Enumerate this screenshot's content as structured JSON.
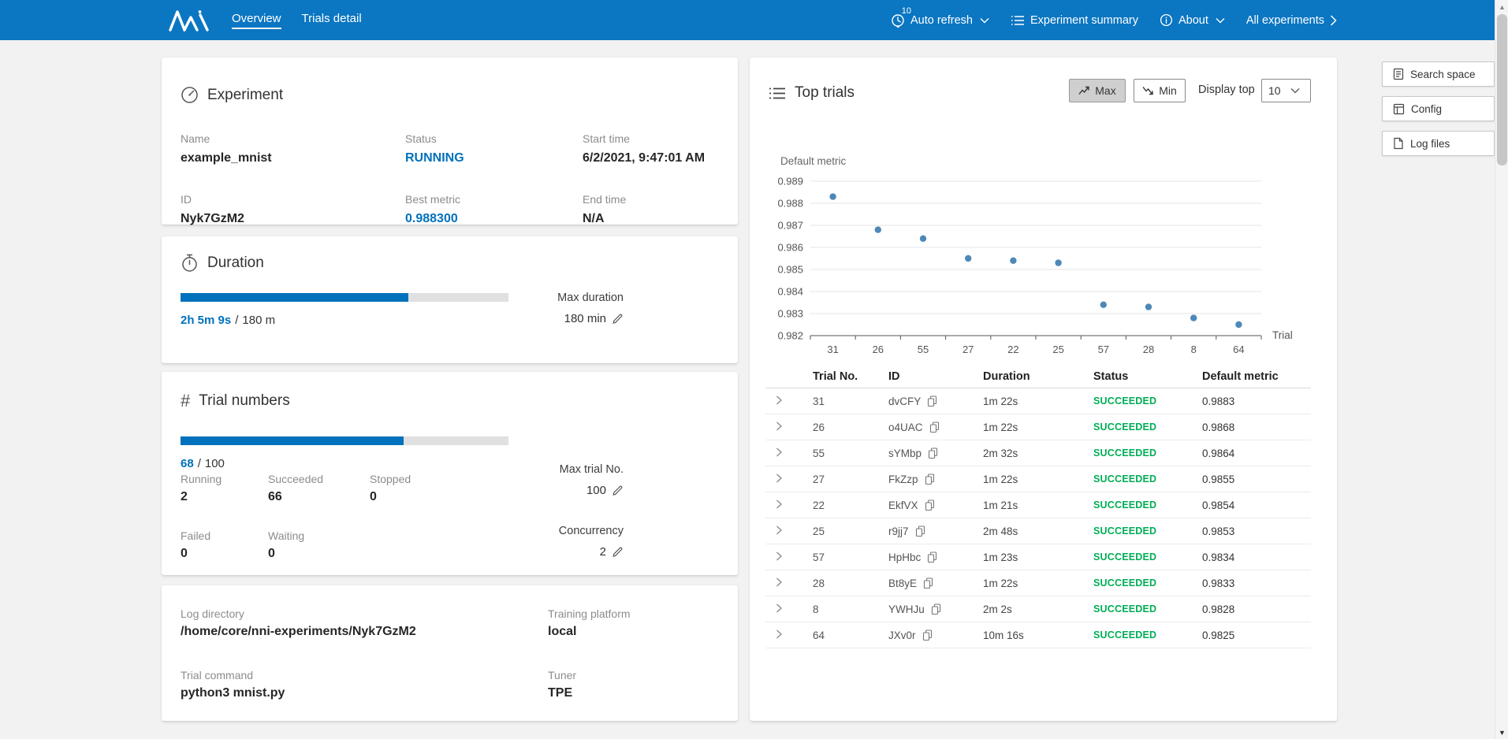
{
  "nav": {
    "tabs": [
      {
        "label": "Overview"
      },
      {
        "label": "Trials detail"
      }
    ],
    "auto_refresh_label": "Auto refresh",
    "auto_refresh_interval": "10",
    "experiment_summary_label": "Experiment summary",
    "about_label": "About",
    "all_experiments_label": "All experiments"
  },
  "side_buttons": [
    {
      "label": "Search space"
    },
    {
      "label": "Config"
    },
    {
      "label": "Log files"
    }
  ],
  "experiment_card": {
    "title": "Experiment",
    "fields": [
      {
        "label": "Name",
        "value": "example_mnist"
      },
      {
        "label": "Status",
        "value": "RUNNING"
      },
      {
        "label": "Start time",
        "value": "6/2/2021, 9:47:01 AM"
      },
      {
        "label": "ID",
        "value": "Nyk7GzM2"
      },
      {
        "label": "Best metric",
        "value": "0.988300"
      },
      {
        "label": "End time",
        "value": "N/A"
      }
    ]
  },
  "duration_card": {
    "title": "Duration",
    "progress_pct": 69.5,
    "elapsed": "2h 5m 9s",
    "divider": "/",
    "total": "180 m",
    "max_label": "Max duration",
    "max_value": "180 min"
  },
  "trials_card": {
    "title": "Trial numbers",
    "progress_pct": 68,
    "count": "68",
    "divider": "/",
    "total": "100",
    "stats": [
      {
        "label": "Running",
        "value": "2"
      },
      {
        "label": "Succeeded",
        "value": "66"
      },
      {
        "label": "Stopped",
        "value": "0"
      },
      {
        "label": "Failed",
        "value": "0"
      },
      {
        "label": "Waiting",
        "value": "0"
      }
    ],
    "max_trial_label": "Max trial No.",
    "max_trial_value": "100",
    "concurrency_label": "Concurrency",
    "concurrency_value": "2"
  },
  "info_card": {
    "fields": [
      {
        "label": "Log directory",
        "value": "/home/core/nni-experiments/Nyk7GzM2"
      },
      {
        "label": "Training platform",
        "value": "local"
      },
      {
        "label": "Trial command",
        "value": "python3 mnist.py"
      },
      {
        "label": "Tuner",
        "value": "TPE"
      }
    ]
  },
  "top_trials": {
    "title": "Top trials",
    "max_button": "Max",
    "min_button": "Min",
    "display_top_label": "Display top",
    "display_top_value": "10",
    "table": {
      "headers": [
        "Trial No.",
        "ID",
        "Duration",
        "Status",
        "Default metric"
      ],
      "rows": [
        {
          "no": "31",
          "id": "dvCFY",
          "duration": "1m 22s",
          "status": "SUCCEEDED",
          "metric": "0.9883"
        },
        {
          "no": "26",
          "id": "o4UAC",
          "duration": "1m 22s",
          "status": "SUCCEEDED",
          "metric": "0.9868"
        },
        {
          "no": "55",
          "id": "sYMbp",
          "duration": "2m 32s",
          "status": "SUCCEEDED",
          "metric": "0.9864"
        },
        {
          "no": "27",
          "id": "FkZzp",
          "duration": "1m 22s",
          "status": "SUCCEEDED",
          "metric": "0.9855"
        },
        {
          "no": "22",
          "id": "EkfVX",
          "duration": "1m 21s",
          "status": "SUCCEEDED",
          "metric": "0.9854"
        },
        {
          "no": "25",
          "id": "r9jj7",
          "duration": "2m 48s",
          "status": "SUCCEEDED",
          "metric": "0.9853"
        },
        {
          "no": "57",
          "id": "HpHbc",
          "duration": "1m 23s",
          "status": "SUCCEEDED",
          "metric": "0.9834"
        },
        {
          "no": "28",
          "id": "Bt8yE",
          "duration": "1m 22s",
          "status": "SUCCEEDED",
          "metric": "0.9833"
        },
        {
          "no": "8",
          "id": "YWHJu",
          "duration": "2m 2s",
          "status": "SUCCEEDED",
          "metric": "0.9828"
        },
        {
          "no": "64",
          "id": "JXv0r",
          "duration": "10m 16s",
          "status": "SUCCEEDED",
          "metric": "0.9825"
        }
      ]
    }
  },
  "chart_data": {
    "type": "scatter",
    "title": "Default metric",
    "xlabel": "Trial",
    "categories": [
      "31",
      "26",
      "55",
      "27",
      "22",
      "25",
      "57",
      "28",
      "8",
      "64"
    ],
    "values": [
      0.9883,
      0.9868,
      0.9864,
      0.9855,
      0.9854,
      0.9853,
      0.9834,
      0.9833,
      0.9828,
      0.9825
    ],
    "ylim": [
      0.982,
      0.989
    ],
    "yticks": [
      0.989,
      0.988,
      0.987,
      0.986,
      0.985,
      0.984,
      0.983,
      0.982
    ],
    "grid": true,
    "legend_position": "none",
    "dot_color": "#4e88b8"
  },
  "colors": {
    "nav_bg": "#0b76c2",
    "accent": "#0071bc",
    "succeeded_green": "#00ad56",
    "page_bg": "#f2f2f2"
  }
}
